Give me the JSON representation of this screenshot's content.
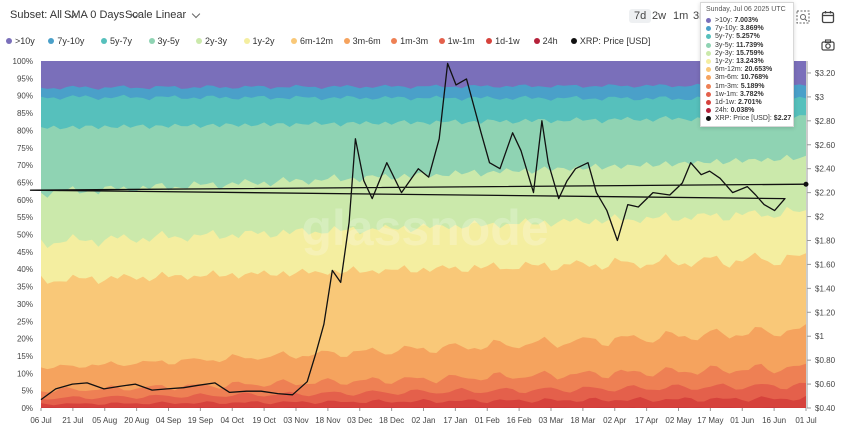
{
  "toolbar": {
    "subset": "Subset: All",
    "sma": "SMA 0 Days",
    "scale": "Scale Linear",
    "ranges": [
      "7d",
      "2w",
      "1m",
      "3m"
    ]
  },
  "watermark": "glassnode",
  "tooltip": {
    "date": "Sunday, Jul 06 2025 UTC",
    "rows": [
      {
        "label": ">10y:",
        "value": "7.003%"
      },
      {
        "label": "7y-10y:",
        "value": "3.869%"
      },
      {
        "label": "5y-7y:",
        "value": "5.257%"
      },
      {
        "label": "3y-5y:",
        "value": "11.739%"
      },
      {
        "label": "2y-3y:",
        "value": "15.759%"
      },
      {
        "label": "1y-2y:",
        "value": "13.243%"
      },
      {
        "label": "6m-12m:",
        "value": "20.653%"
      },
      {
        "label": "3m-6m:",
        "value": "10.768%"
      },
      {
        "label": "1m-3m:",
        "value": "5.189%"
      },
      {
        "label": "1w-1m:",
        "value": "3.782%"
      },
      {
        "label": "1d-1w:",
        "value": "2.701%"
      },
      {
        "label": "24h:",
        "value": "0.038%"
      },
      {
        "label": "XRP: Price [USD]:",
        "value": "$2.27"
      }
    ]
  },
  "chart_data": {
    "type": "area",
    "stacked": true,
    "normalized": true,
    "x_ticks": [
      "06 Jul",
      "21 Jul",
      "05 Aug",
      "20 Aug",
      "04 Sep",
      "19 Sep",
      "04 Oct",
      "19 Oct",
      "03 Nov",
      "18 Nov",
      "03 Dec",
      "18 Dec",
      "02 Jan",
      "17 Jan",
      "01 Feb",
      "16 Feb",
      "03 Mar",
      "18 Mar",
      "02 Apr",
      "17 Apr",
      "02 May",
      "17 May",
      "01 Jun",
      "16 Jun",
      "01 Jul"
    ],
    "y_left_ticks": [
      "0%",
      "5%",
      "10%",
      "15%",
      "20%",
      "25%",
      "30%",
      "35%",
      "40%",
      "45%",
      "50%",
      "55%",
      "60%",
      "65%",
      "70%",
      "75%",
      "80%",
      "85%",
      "90%",
      "95%",
      "100%"
    ],
    "y_right_ticks": [
      "$0.40",
      "$0.60",
      "$0.80",
      "$1",
      "$1.20",
      "$1.40",
      "$1.60",
      "$1.80",
      "$2",
      "$2.20",
      "$2.40",
      "$2.60",
      "$2.80",
      "$3",
      "$3.20"
    ],
    "y_right_range": [
      0.4,
      3.3
    ],
    "series": [
      {
        "name": "24h",
        "color": "#b5213a",
        "start": 0.04,
        "end": 0.04
      },
      {
        "name": "1d-1w",
        "color": "#d6423c",
        "start": 1.0,
        "end": 2.7
      },
      {
        "name": "1w-1m",
        "color": "#e4604b",
        "start": 1.5,
        "end": 3.78
      },
      {
        "name": "1m-3m",
        "color": "#ee8054",
        "start": 2.0,
        "end": 5.19
      },
      {
        "name": "3m-6m",
        "color": "#f5a35e",
        "start": 6.0,
        "end": 10.77
      },
      {
        "name": "6m-12m",
        "color": "#f9c878",
        "start": 23.0,
        "end": 20.65
      },
      {
        "name": "1y-2y",
        "color": "#f4eea0",
        "start": 10.0,
        "end": 13.24
      },
      {
        "name": "2y-3y",
        "color": "#cbe9ab",
        "start": 13.0,
        "end": 15.76
      },
      {
        "name": "3y-5y",
        "color": "#8fd3b3",
        "start": 17.0,
        "end": 11.74
      },
      {
        "name": "5y-7y",
        "color": "#56c0bc",
        "start": 8.0,
        "end": 5.26
      },
      {
        "name": "7y-10y",
        "color": "#4aa0c9",
        "start": 2.5,
        "end": 3.87
      },
      {
        "name": ">10y",
        "color": "#7a6fba",
        "start": 7.0,
        "end": 7.0
      }
    ],
    "price": {
      "name": "XRP: Price [USD]",
      "color": "#111111",
      "points": [
        [
          "06 Jul",
          0.47
        ],
        [
          "13 Jul",
          0.56
        ],
        [
          "21 Jul",
          0.6
        ],
        [
          "28 Jul",
          0.61
        ],
        [
          "05 Aug",
          0.56
        ],
        [
          "12 Aug",
          0.58
        ],
        [
          "20 Aug",
          0.6
        ],
        [
          "28 Aug",
          0.55
        ],
        [
          "04 Sep",
          0.56
        ],
        [
          "12 Sep",
          0.57
        ],
        [
          "19 Sep",
          0.59
        ],
        [
          "27 Sep",
          0.61
        ],
        [
          "04 Oct",
          0.53
        ],
        [
          "12 Oct",
          0.54
        ],
        [
          "19 Oct",
          0.54
        ],
        [
          "27 Oct",
          0.52
        ],
        [
          "03 Nov",
          0.51
        ],
        [
          "10 Nov",
          0.62
        ],
        [
          "14 Nov",
          0.85
        ],
        [
          "18 Nov",
          1.1
        ],
        [
          "22 Nov",
          1.55
        ],
        [
          "26 Nov",
          1.45
        ],
        [
          "30 Nov",
          1.95
        ],
        [
          "03 Dec",
          2.65
        ],
        [
          "07 Dec",
          2.3
        ],
        [
          "11 Dec",
          2.15
        ],
        [
          "18 Dec",
          2.45
        ],
        [
          "25 Dec",
          2.2
        ],
        [
          "02 Jan",
          2.4
        ],
        [
          "07 Jan",
          2.33
        ],
        [
          "12 Jan",
          2.65
        ],
        [
          "16 Jan",
          3.28
        ],
        [
          "20 Jan",
          3.1
        ],
        [
          "25 Jan",
          3.15
        ],
        [
          "01 Feb",
          2.7
        ],
        [
          "05 Feb",
          2.45
        ],
        [
          "10 Feb",
          2.4
        ],
        [
          "16 Feb",
          2.7
        ],
        [
          "20 Feb",
          2.55
        ],
        [
          "26 Feb",
          2.2
        ],
        [
          "02 Mar",
          2.8
        ],
        [
          "05 Mar",
          2.45
        ],
        [
          "10 Mar",
          2.15
        ],
        [
          "14 Mar",
          2.3
        ],
        [
          "18 Mar",
          2.4
        ],
        [
          "24 Mar",
          2.45
        ],
        [
          "28 Mar",
          2.2
        ],
        [
          "02 Apr",
          2.05
        ],
        [
          "07 Apr",
          1.8
        ],
        [
          "12 Apr",
          2.1
        ],
        [
          "17 Apr",
          2.08
        ],
        [
          "24 Apr",
          2.2
        ],
        [
          "02 May",
          2.18
        ],
        [
          "08 May",
          2.28
        ],
        [
          "12 May",
          2.45
        ],
        [
          "17 May",
          2.35
        ],
        [
          "21 May",
          2.38
        ],
        [
          "26 May",
          2.32
        ],
        [
          "01 Jun",
          2.2
        ],
        [
          "08 Jun",
          2.25
        ],
        [
          "12 Jun",
          2.18
        ],
        [
          "16 Jun",
          2.1
        ],
        [
          "21 Jun",
          2.05
        ],
        [
          "26 Jun",
          2.15
        ],
        [
          "01 Jul",
          2.22
        ],
        [
          "06 Jul",
          2.27
        ]
      ]
    }
  }
}
